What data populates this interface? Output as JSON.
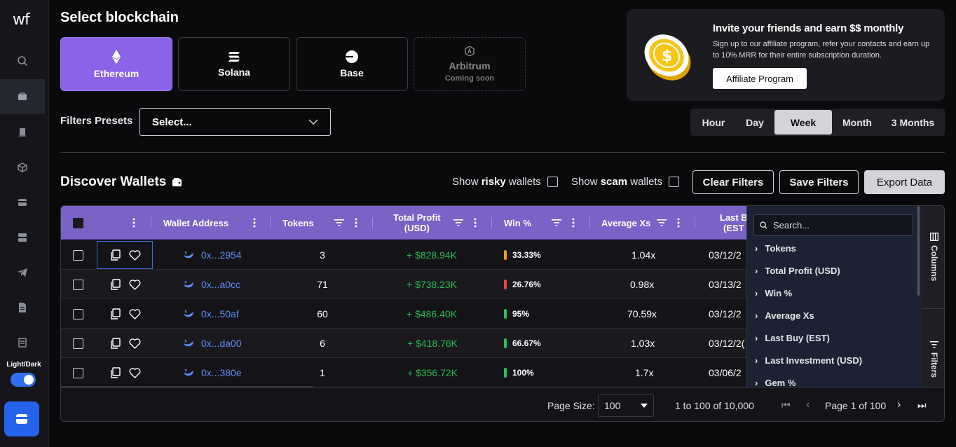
{
  "sidebar": {
    "logo": "wf",
    "theme_label": "Light/Dark"
  },
  "header": {
    "title": "Select blockchain"
  },
  "chains": [
    {
      "name": "Ethereum",
      "active": true
    },
    {
      "name": "Solana"
    },
    {
      "name": "Base"
    },
    {
      "name": "Arbitrum",
      "subtitle": "Coming soon",
      "disabled": true
    }
  ],
  "filters": {
    "presets_label": "Filters Presets",
    "select_placeholder": "Select..."
  },
  "affiliate": {
    "title": "Invite your friends and earn $$ monthly",
    "description": "Sign up to our affiliate program, refer your contacts and earn up to 10% MRR for their entire subscription duration.",
    "button": "Affiliate Program"
  },
  "time_range": {
    "options": [
      "Hour",
      "Day",
      "Week",
      "Month",
      "3 Months"
    ],
    "selected": "Week"
  },
  "discover": {
    "title": "Discover Wallets",
    "show_risky_prefix": "Show ",
    "show_risky_bold": "risky",
    "show_risky_suffix": " wallets",
    "show_scam_prefix": "Show ",
    "show_scam_bold": "scam",
    "show_scam_suffix": " wallets",
    "clear_filters": "Clear Filters",
    "save_filters": "Save Filters",
    "export_data": "Export Data"
  },
  "table": {
    "columns": {
      "wallet": "Wallet Address",
      "tokens": "Tokens",
      "profit_1": "Total Profit",
      "profit_2": "(USD)",
      "winpct": "Win %",
      "avgxs": "Average Xs",
      "lastbuy_1": "Last B",
      "lastbuy_2": "(EST"
    },
    "rows": [
      {
        "address": "0x...2954",
        "tokens": "3",
        "profit": "+ $828.94K",
        "win": "33.33%",
        "win_color": "#f59e0b",
        "avg": "1.04x",
        "last": "03/12/2"
      },
      {
        "address": "0x...a0cc",
        "tokens": "71",
        "profit": "+ $738.23K",
        "win": "26.76%",
        "win_color": "#ef4444",
        "avg": "0.98x",
        "last": "03/13/2"
      },
      {
        "address": "0x...50af",
        "tokens": "60",
        "profit": "+ $486.40K",
        "win": "95%",
        "win_color": "#22c55e",
        "avg": "70.59x",
        "last": "03/12/2"
      },
      {
        "address": "0x...da00",
        "tokens": "6",
        "profit": "+ $418.76K",
        "win": "66.67%",
        "win_color": "#22c55e",
        "avg": "1.03x",
        "last": "03/12/2("
      },
      {
        "address": "0x...380e",
        "tokens": "1",
        "profit": "+ $356.72K",
        "win": "100%",
        "win_color": "#22c55e",
        "avg": "1.7x",
        "last": "03/06/2"
      }
    ],
    "footer": {
      "page_size_label": "Page Size:",
      "page_size": "100",
      "range": "1 to 100 of 10,000",
      "page": "Page 1 of 100"
    }
  },
  "column_panel": {
    "search_placeholder": "Search...",
    "items": [
      "Tokens",
      "Total Profit (USD)",
      "Win %",
      "Average Xs",
      "Last Buy (EST)",
      "Last Investment (USD)",
      "Gem %"
    ],
    "tab_columns": "Columns",
    "tab_filters": "Filters"
  }
}
